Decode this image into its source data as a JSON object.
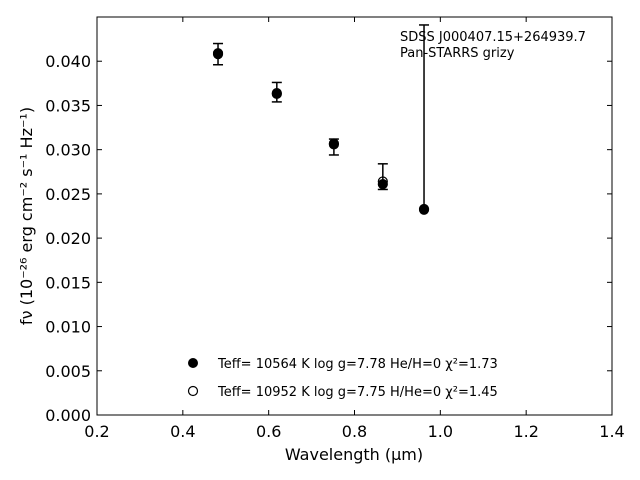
{
  "chart_data": {
    "type": "scatter",
    "xlabel": "Wavelength (μm)",
    "ylabel": "fν (10⁻²⁶ erg cm⁻² s⁻¹ Hz⁻¹)",
    "xlim": [
      0.2,
      1.4
    ],
    "ylim": [
      0.0,
      0.045
    ],
    "x_ticks": [
      0.2,
      0.4,
      0.6,
      0.8,
      1.0,
      1.2,
      1.4
    ],
    "x_tick_labels": [
      "0.2",
      "0.4",
      "0.6",
      "0.8",
      "1.0",
      "1.2",
      "1.4"
    ],
    "y_ticks": [
      0.0,
      0.005,
      0.01,
      0.015,
      0.02,
      0.025,
      0.03,
      0.035,
      0.04
    ],
    "y_tick_labels": [
      "0.000",
      "0.005",
      "0.010",
      "0.015",
      "0.020",
      "0.025",
      "0.030",
      "0.035",
      "0.040"
    ],
    "grid": false,
    "annotation": [
      "SDSS J000407.15+264939.7",
      "Pan-STARRS grizy"
    ],
    "observed": {
      "x": [
        0.482,
        0.619,
        0.752,
        0.866,
        0.962
      ],
      "y": [
        0.0408,
        0.0364,
        0.0304,
        0.0264,
        0.0233
      ],
      "err_low": [
        0.0012,
        0.001,
        0.001,
        0.0009,
        0.0
      ],
      "err_high": [
        0.0012,
        0.0012,
        0.0008,
        0.002,
        0.0208
      ]
    },
    "series": [
      {
        "name": "Teff= 10564 K  log g=7.78  He/H=0  χ²=1.73",
        "marker": "filled-circle",
        "x": [
          0.482,
          0.619,
          0.752,
          0.866,
          0.962
        ],
        "y": [
          0.0408,
          0.0363,
          0.0307,
          0.0261,
          0.0232
        ]
      },
      {
        "name": "Teff= 10952 K  log g=7.75  H/He=0  χ²=1.45",
        "marker": "open-circle",
        "x": [
          0.482,
          0.619,
          0.752,
          0.866,
          0.962
        ],
        "y": [
          0.0409,
          0.0364,
          0.0306,
          0.0264,
          0.0233
        ]
      }
    ],
    "legend_placement": "lower-center"
  }
}
